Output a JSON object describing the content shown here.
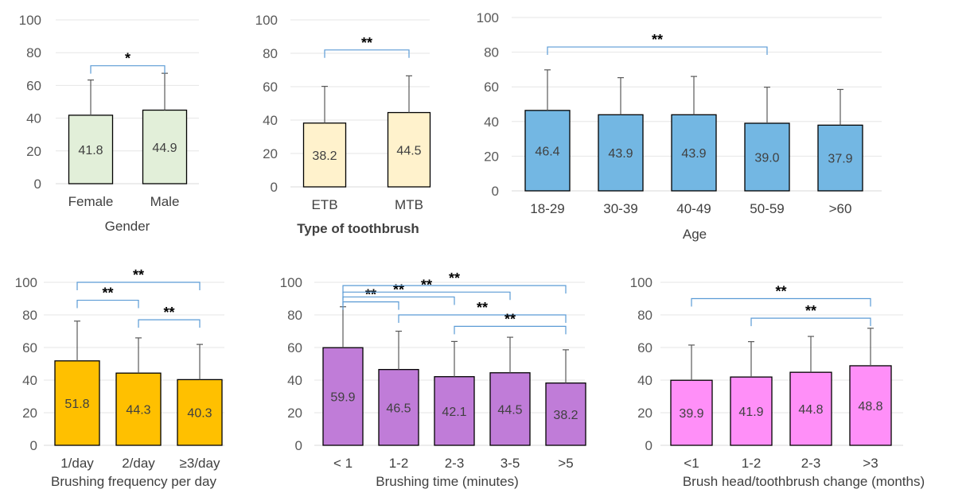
{
  "chart_data": [
    {
      "type": "bar",
      "categories": [
        "Female",
        "Male"
      ],
      "values": [
        41.8,
        44.9
      ],
      "error_plus": [
        21.5,
        22.5
      ],
      "data_labels": [
        "41.8",
        "44.9"
      ],
      "xlabel": "Gender",
      "ylim": [
        0,
        100
      ],
      "yticks": [
        "0",
        "20",
        "40",
        "60",
        "80",
        "100"
      ],
      "grid": true,
      "bar_color": "#e2efd9",
      "significance": [
        {
          "from": 0,
          "to": 1,
          "label": "*",
          "level": 72
        }
      ]
    },
    {
      "type": "bar",
      "categories": [
        "ETB",
        "MTB"
      ],
      "values": [
        38.2,
        44.5
      ],
      "error_plus": [
        22.0,
        22.0
      ],
      "data_labels": [
        "38.2",
        "44.5"
      ],
      "xlabel": "Type of toothbrush",
      "ylim": [
        0,
        100
      ],
      "yticks": [
        "0",
        "20",
        "40",
        "60",
        "80",
        "100"
      ],
      "grid": true,
      "bar_color": "#fff2cc",
      "significance": [
        {
          "from": 0,
          "to": 1,
          "label": "**",
          "level": 82
        }
      ]
    },
    {
      "type": "bar",
      "categories": [
        "18-29",
        "30-39",
        "40-49",
        "50-59",
        ">60"
      ],
      "values": [
        46.4,
        43.9,
        43.9,
        39.0,
        37.9
      ],
      "error_plus": [
        23.4,
        21.4,
        22.1,
        20.8,
        20.6
      ],
      "data_labels": [
        "46.4",
        "43.9",
        "43.9",
        "39.0",
        "37.9"
      ],
      "xlabel": "Age",
      "ylim": [
        0,
        100
      ],
      "yticks": [
        "0",
        "20",
        "40",
        "60",
        "80",
        "100"
      ],
      "grid": true,
      "bar_color": "#73b7e3",
      "significance": [
        {
          "from": 0,
          "to": 3,
          "label": "**",
          "level": 83
        }
      ]
    },
    {
      "type": "bar",
      "categories": [
        "1/day",
        "2/day",
        "≥3/day"
      ],
      "values": [
        51.8,
        44.3,
        40.3
      ],
      "error_plus": [
        24.4,
        21.6,
        21.6
      ],
      "data_labels": [
        "51.8",
        "44.3",
        "40.3"
      ],
      "xlabel": "Brushing  frequency per day",
      "ylim": [
        0,
        100
      ],
      "yticks": [
        "0",
        "20",
        "40",
        "60",
        "80",
        "100"
      ],
      "grid": true,
      "bar_color": "#ffc000",
      "significance": [
        {
          "from": 0,
          "to": 1,
          "label": "**",
          "level": 89
        },
        {
          "from": 1,
          "to": 2,
          "label": "**",
          "level": 77
        },
        {
          "from": 0,
          "to": 2,
          "label": "**",
          "level": 100
        }
      ]
    },
    {
      "type": "bar",
      "categories": [
        "< 1",
        "1-2",
        "2-3",
        "3-5",
        ">5"
      ],
      "values": [
        59.9,
        46.5,
        42.1,
        44.5,
        38.2
      ],
      "error_plus": [
        25.1,
        23.5,
        21.6,
        21.8,
        20.4
      ],
      "data_labels": [
        "59.9",
        "46.5",
        "42.1",
        "44.5",
        "38.2"
      ],
      "xlabel": "Brushing  time (minutes)",
      "ylim": [
        0,
        100
      ],
      "yticks": [
        "0",
        "20",
        "40",
        "60",
        "80",
        "100"
      ],
      "grid": true,
      "bar_color": "#c07cd8",
      "significance": [
        {
          "from": 0,
          "to": 1,
          "label": "**",
          "level": 88
        },
        {
          "from": 0,
          "to": 2,
          "label": "**",
          "level": 91
        },
        {
          "from": 0,
          "to": 3,
          "label": "**",
          "level": 94
        },
        {
          "from": 0,
          "to": 4,
          "label": "**",
          "level": 98
        },
        {
          "from": 1,
          "to": 4,
          "label": "**",
          "level": 80
        },
        {
          "from": 2,
          "to": 4,
          "label": "**",
          "level": 73
        }
      ]
    },
    {
      "type": "bar",
      "categories": [
        "<1",
        "1-2",
        "2-3",
        ">3"
      ],
      "values": [
        39.9,
        41.9,
        44.8,
        48.8
      ],
      "error_plus": [
        21.6,
        21.7,
        22.0,
        23.0
      ],
      "data_labels": [
        "39.9",
        "41.9",
        "44.8",
        "48.8"
      ],
      "xlabel": "Brush head/toothbrush  change (months)",
      "ylim": [
        0,
        100
      ],
      "yticks": [
        "0",
        "20",
        "40",
        "60",
        "80",
        "100"
      ],
      "grid": true,
      "bar_color": "#ff8ff8",
      "significance": [
        {
          "from": 1,
          "to": 3,
          "label": "**",
          "level": 78
        },
        {
          "from": 0,
          "to": 3,
          "label": "**",
          "level": 90
        }
      ]
    }
  ]
}
